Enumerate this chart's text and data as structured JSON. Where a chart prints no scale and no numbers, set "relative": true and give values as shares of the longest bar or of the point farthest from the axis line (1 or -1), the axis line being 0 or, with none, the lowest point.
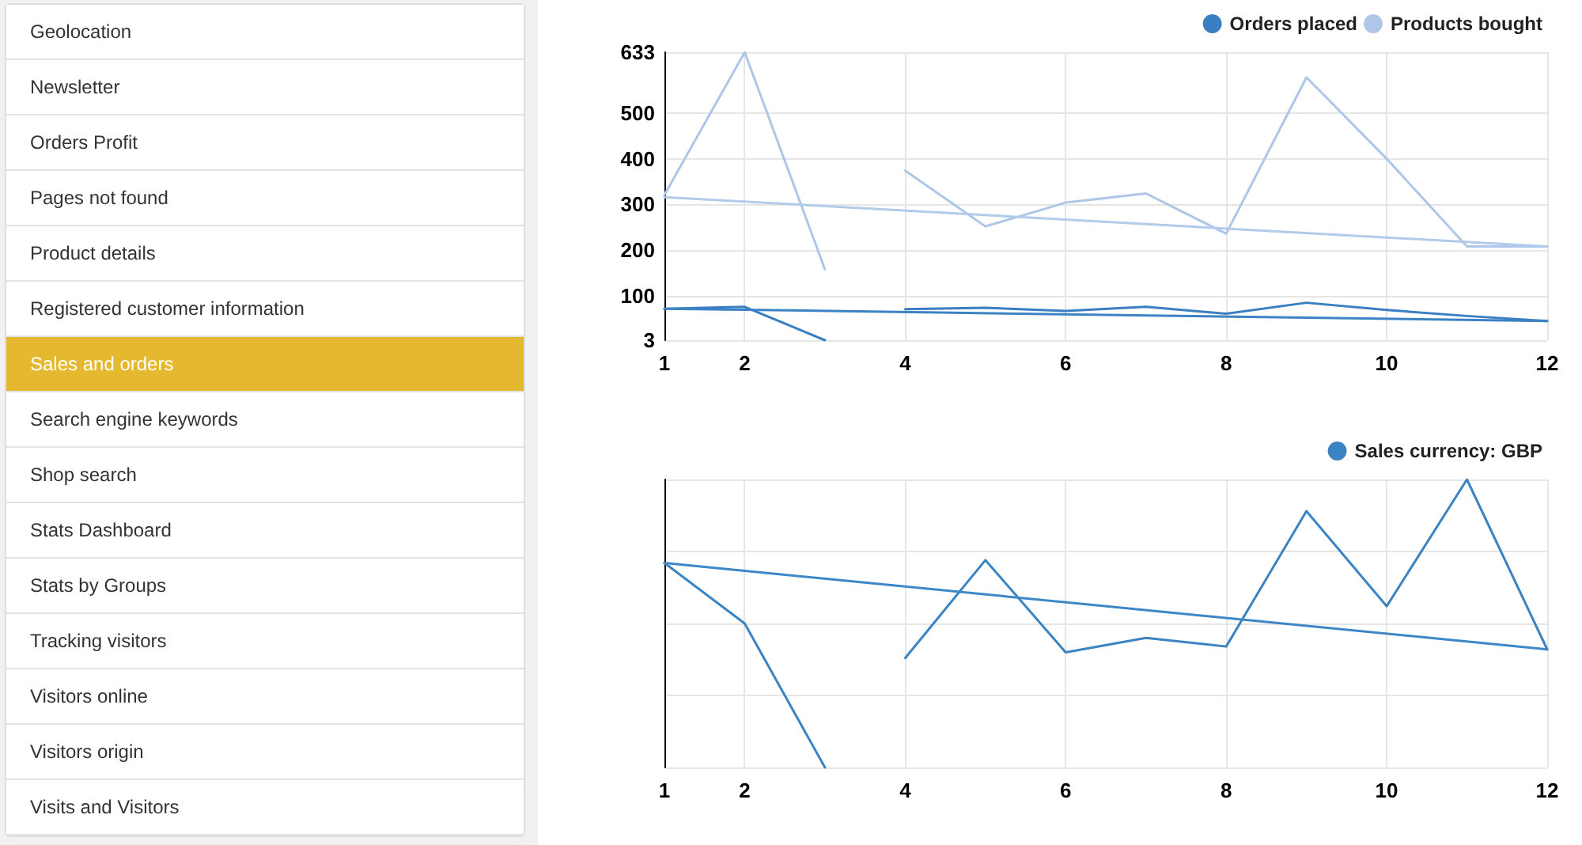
{
  "chart_data": [
    {
      "type": "other",
      "categories": [
        "Geolocation",
        "Newsletter",
        "Orders Profit",
        "Pages not found",
        "Product details",
        "Registered customer information",
        "Sales and orders",
        "Search engine keywords",
        "Shop search",
        "Stats Dashboard",
        "Stats by Groups",
        "Tracking visitors",
        "Visitors online",
        "Visitors origin",
        "Visits and Visitors"
      ],
      "colors": [
        "#ffffff",
        "#ffffff",
        "#ffffff",
        "#ffffff",
        "#ffffff",
        "#ffffff",
        "#e4b930",
        "#ffffff",
        "#ffffff",
        "#ffffff",
        "#ffffff",
        "#ffffff",
        "#ffffff",
        "#ffffff",
        "#ffffff"
      ]
    },
    {
      "type": "line",
      "xlim": [
        1,
        12
      ],
      "xticks": [
        1,
        2,
        4,
        6,
        8,
        10,
        12
      ],
      "ylim": [
        3,
        633
      ],
      "yticks": [
        3,
        100,
        200,
        300,
        400,
        500,
        633
      ],
      "grid": true,
      "legend": "top right",
      "marker": "none",
      "line_style": "solid",
      "series": [
        {
          "name": "Orders placed",
          "color": "#3a7fc1",
          "x": [
            1,
            2,
            3,
            3.5,
            4,
            5,
            6,
            7,
            8,
            9,
            10,
            11,
            12
          ],
          "values": [
            72,
            76,
            3,
            null,
            71,
            74,
            67,
            76,
            61,
            85,
            69,
            56,
            45
          ]
        },
        {
          "name": "Products bought",
          "color": "#aec7e8",
          "x": [
            1,
            2,
            3,
            3.5,
            4,
            5,
            6,
            7,
            8,
            9,
            10,
            11,
            12
          ],
          "values": [
            321,
            633,
            158,
            null,
            374,
            252,
            304,
            324,
            236,
            578,
            400,
            208,
            208
          ]
        },
        {
          "color": "#3d82c4",
          "x": [
            1,
            12
          ],
          "values": [
            72,
            45
          ]
        },
        {
          "color": "#b2cbea",
          "x": [
            1,
            12
          ],
          "values": [
            316,
            208
          ]
        }
      ]
    },
    {
      "type": "line",
      "relative": true,
      "xlim": [
        1,
        12
      ],
      "xticks": [
        1,
        2,
        4,
        6,
        8,
        10,
        12
      ],
      "grid": true,
      "legend": "top right",
      "marker": "none",
      "line_style": "solid",
      "series": [
        {
          "name": "Sales currency: GBP",
          "color": "#3a84c4",
          "x": [
            1,
            2,
            3,
            3.5,
            4,
            5,
            6,
            7,
            8,
            9,
            10,
            11,
            12
          ],
          "values": [
            0.71,
            0.5,
            0,
            null,
            0.38,
            0.72,
            0.4,
            0.45,
            0.42,
            0.89,
            0.56,
            1,
            0.41
          ]
        },
        {
          "color": "#3d87c7",
          "x": [
            1,
            12
          ],
          "values": [
            0.71,
            0.41
          ]
        }
      ]
    }
  ]
}
